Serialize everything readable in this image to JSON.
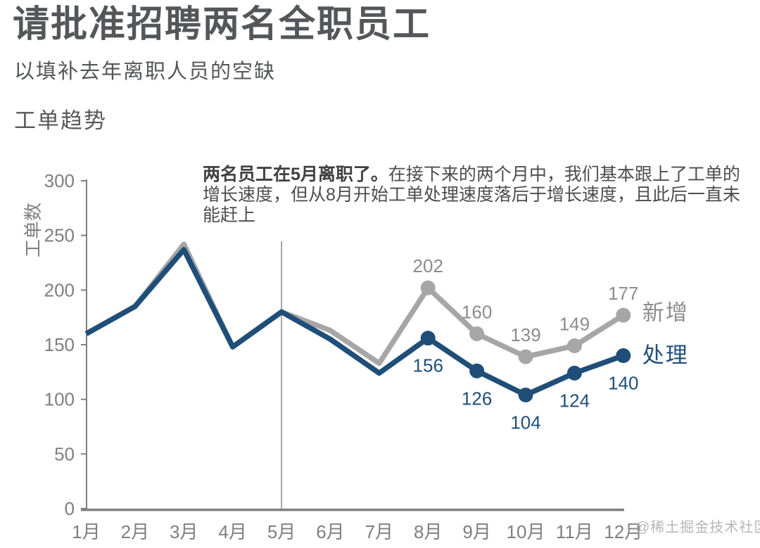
{
  "header": {
    "title": "请批准招聘两名全职员工",
    "subtitle": "以填补去年离职人员的空缺",
    "section_title": "工单趋势"
  },
  "annotation": {
    "bold_text": "两名员工在5月离职了。",
    "text": "在接下来的两个月中，我们基本跟上了工单的增长速度，但从8月开始工单处理速度落后于增长速度，且此后一直未能赶上"
  },
  "watermark": "@稀土掘金技术社区",
  "colors": {
    "new_series": "#a6a6a6",
    "processed_series": "#1f4e79",
    "axis": "#808080",
    "axis_text": "#7f7f7f",
    "event_line": "#a6a6a6"
  },
  "chart_data": {
    "type": "line",
    "title": "工单趋势",
    "xlabel": "",
    "ylabel": "工单数",
    "ylim": [
      0,
      300
    ],
    "yticks": [
      0,
      50,
      100,
      150,
      200,
      250,
      300
    ],
    "categories": [
      "1月",
      "2月",
      "3月",
      "4月",
      "5月",
      "6月",
      "7月",
      "8月",
      "9月",
      "10月",
      "11月",
      "12月"
    ],
    "series": [
      {
        "name": "新增",
        "color": "#a6a6a6",
        "label_color": "#8c8c8c",
        "values": [
          160,
          185,
          242,
          148,
          180,
          163,
          133,
          202,
          160,
          139,
          149,
          177
        ],
        "labels_shown_from": "8月",
        "shown_labels": [
          202,
          160,
          139,
          149,
          177
        ]
      },
      {
        "name": "处理",
        "color": "#1f4e79",
        "label_color": "#1f4e79",
        "values": [
          160,
          185,
          237,
          148,
          180,
          155,
          124,
          156,
          126,
          104,
          124,
          140
        ],
        "labels_shown_from": "8月",
        "shown_labels": [
          156,
          126,
          104,
          124,
          140
        ]
      }
    ],
    "event_line": {
      "at_category": "5月"
    },
    "grid": false,
    "legend_position": "end-of-line"
  }
}
